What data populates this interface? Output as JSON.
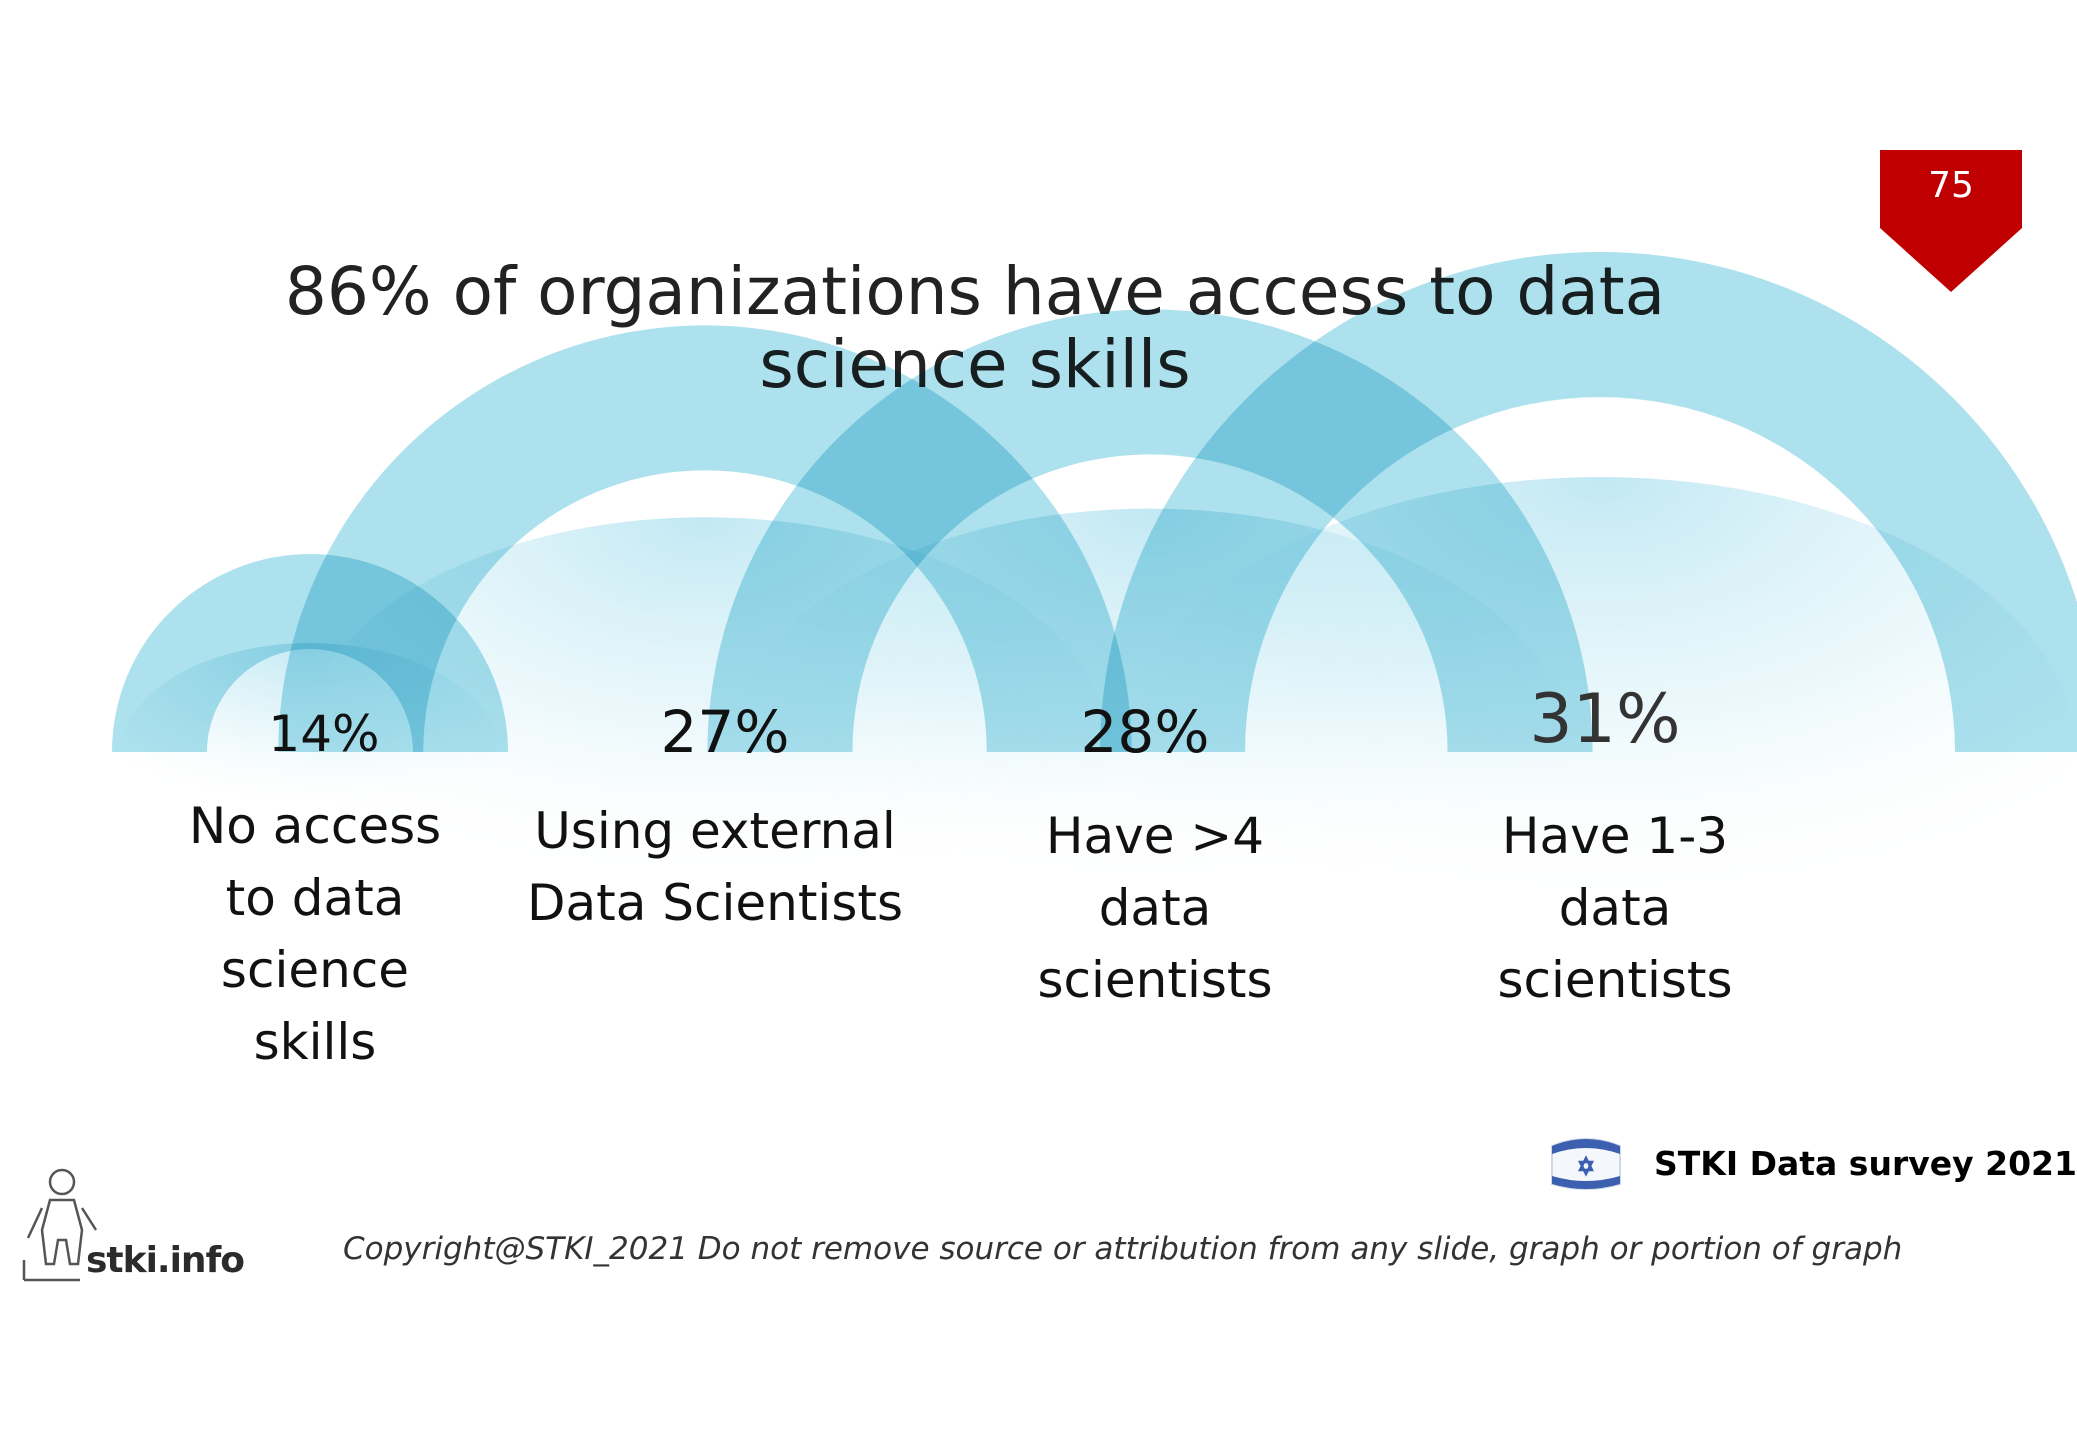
{
  "slide": {
    "title": "86% of organizations have access to data science skills",
    "page_number": "75"
  },
  "chart_data": {
    "type": "bar",
    "title": "86% of organizations have access to data science skills",
    "categories": [
      "No access to data science skills",
      "Using external Data Scientists",
      "Have >4 data scientists",
      "Have 1-3 data scientists"
    ],
    "values": [
      14,
      27,
      28,
      31
    ],
    "value_labels": [
      "14%",
      "27%",
      "28%",
      "31%"
    ],
    "display_lines": [
      "No access\nto data\nscience\nskills",
      "Using external\nData Scientists",
      "Have >4\ndata\nscientists",
      "Have 1-3\ndata\nscientists"
    ]
  },
  "footer": {
    "source_label": "STKI Data survey 2021",
    "copyright": "Copyright@STKI_2021 Do not remove source or attribution from any slide, graph or portion of graph",
    "logo_text": "stki.info"
  },
  "colors": {
    "arc_fill": "#9fdcea",
    "arc_overlap": "#5cc3df",
    "badge": "#c00000"
  },
  "icons": {
    "source_flag": "israel-flag-icon",
    "logo": "stki-person-logo-icon"
  }
}
